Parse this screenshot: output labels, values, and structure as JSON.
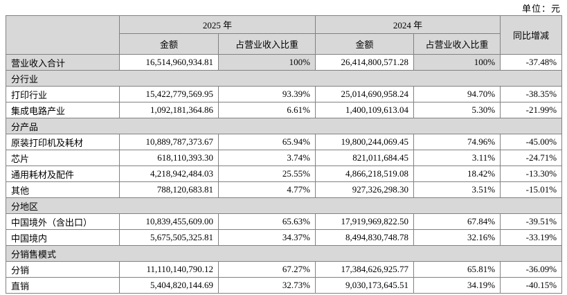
{
  "unit_label": "单位：元",
  "colors": {
    "gray_bg": "#d8d8d8",
    "border": "#808080",
    "text": "#000000",
    "row_bg": "#ffffff"
  },
  "table": {
    "header": {
      "corner": "",
      "year_2025": "2025 年",
      "year_2024": "2024 年",
      "yoy": "同比增减",
      "amount_2025": "金额",
      "pct_2025": "占营业收入比重",
      "amount_2024": "金额",
      "pct_2024": "占营业收入比重"
    },
    "rows": [
      {
        "type": "data",
        "label": "营业收入合计",
        "amount_2025": "16,514,960,934.81",
        "pct_2025": "100%",
        "amount_2024": "26,414,800,571.28",
        "pct_2024": "100%",
        "yoy": "-37.48%",
        "gray_cells": [
          0,
          2,
          4
        ]
      },
      {
        "type": "section",
        "label": "分行业"
      },
      {
        "type": "data",
        "label": "打印行业",
        "amount_2025": "15,422,779,569.95",
        "pct_2025": "93.39%",
        "amount_2024": "25,014,690,958.24",
        "pct_2024": "94.70%",
        "yoy": "-38.35%"
      },
      {
        "type": "data",
        "label": "集成电路产业",
        "amount_2025": "1,092,181,364.86",
        "pct_2025": "6.61%",
        "amount_2024": "1,400,109,613.04",
        "pct_2024": "5.30%",
        "yoy": "-21.99%"
      },
      {
        "type": "section",
        "label": "分产品"
      },
      {
        "type": "data",
        "label": "原装打印机及耗材",
        "amount_2025": "10,889,787,373.67",
        "pct_2025": "65.94%",
        "amount_2024": "19,800,244,069.45",
        "pct_2024": "74.96%",
        "yoy": "-45.00%"
      },
      {
        "type": "data",
        "label": "芯片",
        "amount_2025": "618,110,393.30",
        "pct_2025": "3.74%",
        "amount_2024": "821,011,684.45",
        "pct_2024": "3.11%",
        "yoy": "-24.71%"
      },
      {
        "type": "data",
        "label": "通用耗材及配件",
        "amount_2025": "4,218,942,484.03",
        "pct_2025": "25.55%",
        "amount_2024": "4,866,218,519.08",
        "pct_2024": "18.42%",
        "yoy": "-13.30%"
      },
      {
        "type": "data",
        "label": "其他",
        "amount_2025": "788,120,683.81",
        "pct_2025": "4.77%",
        "amount_2024": "927,326,298.30",
        "pct_2024": "3.51%",
        "yoy": "-15.01%"
      },
      {
        "type": "section",
        "label": "分地区"
      },
      {
        "type": "data",
        "label": "中国境外（含出口）",
        "amount_2025": "10,839,455,609.00",
        "pct_2025": "65.63%",
        "amount_2024": "17,919,969,822.50",
        "pct_2024": "67.84%",
        "yoy": "-39.51%"
      },
      {
        "type": "data",
        "label": "中国境内",
        "amount_2025": "5,675,505,325.81",
        "pct_2025": "34.37%",
        "amount_2024": "8,494,830,748.78",
        "pct_2024": "32.16%",
        "yoy": "-33.19%"
      },
      {
        "type": "section",
        "label": "分销售模式"
      },
      {
        "type": "data",
        "label": "分销",
        "amount_2025": "11,110,140,790.12",
        "pct_2025": "67.27%",
        "amount_2024": "17,384,626,925.77",
        "pct_2024": "65.81%",
        "yoy": "-36.09%"
      },
      {
        "type": "data",
        "label": "直销",
        "amount_2025": "5,404,820,144.69",
        "pct_2025": "32.73%",
        "amount_2024": "9,030,173,645.51",
        "pct_2024": "34.19%",
        "yoy": "-40.15%"
      }
    ]
  }
}
